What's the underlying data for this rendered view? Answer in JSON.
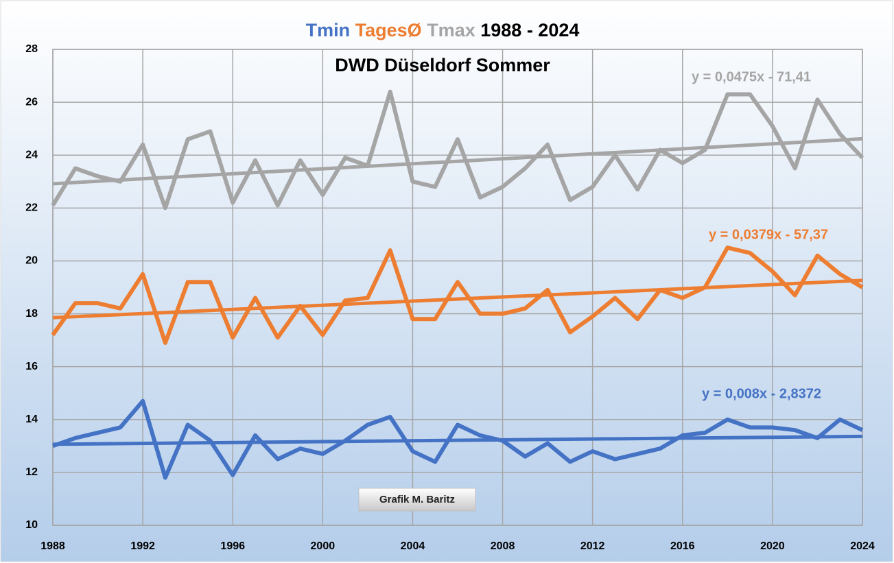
{
  "chart_data": {
    "type": "line",
    "title": "1988 - 2024",
    "subtitle": "DWD Düseldorf Sommer",
    "annotation": "Grafik M. Baritz",
    "x": [
      1988,
      1989,
      1990,
      1991,
      1992,
      1993,
      1994,
      1995,
      1996,
      1997,
      1998,
      1999,
      2000,
      2001,
      2002,
      2003,
      2004,
      2005,
      2006,
      2007,
      2008,
      2009,
      2010,
      2011,
      2012,
      2013,
      2014,
      2015,
      2016,
      2017,
      2018,
      2019,
      2020,
      2021,
      2022,
      2023,
      2024
    ],
    "series": [
      {
        "name": "Tmin",
        "color": "#4472c4",
        "trend_label": "y = 0,008x - 2,8372",
        "values": [
          13.0,
          13.3,
          13.5,
          13.7,
          14.7,
          11.8,
          13.8,
          13.2,
          11.9,
          13.4,
          12.5,
          12.9,
          12.7,
          13.2,
          13.8,
          14.1,
          12.8,
          12.4,
          13.8,
          13.4,
          13.2,
          12.6,
          13.1,
          12.4,
          12.8,
          12.5,
          12.7,
          12.9,
          13.4,
          13.5,
          14.0,
          13.7,
          13.7,
          13.6,
          13.3,
          14.0,
          13.6
        ]
      },
      {
        "name": "TagesØ",
        "color": "#ed7d31",
        "trend_label": "y = 0,0379x - 57,37",
        "values": [
          17.2,
          18.4,
          18.4,
          18.2,
          19.5,
          16.9,
          19.2,
          19.2,
          17.1,
          18.6,
          17.1,
          18.3,
          17.2,
          18.5,
          18.6,
          20.4,
          17.8,
          17.8,
          19.2,
          18.0,
          18.0,
          18.2,
          18.9,
          17.3,
          17.9,
          18.6,
          17.8,
          18.9,
          18.6,
          19.0,
          20.5,
          20.3,
          19.6,
          18.7,
          20.2,
          19.5,
          19.0
        ]
      },
      {
        "name": "Tmax",
        "color": "#a5a5a5",
        "trend_label": "y = 0,0475x - 71,41",
        "values": [
          22.1,
          23.5,
          23.2,
          23.0,
          24.4,
          22.0,
          24.6,
          24.9,
          22.2,
          23.8,
          22.1,
          23.8,
          22.5,
          23.9,
          23.6,
          26.4,
          23.0,
          22.8,
          24.6,
          22.4,
          22.8,
          23.5,
          24.4,
          22.3,
          22.8,
          24.0,
          22.7,
          24.2,
          23.7,
          24.2,
          26.3,
          26.3,
          25.1,
          23.5,
          26.1,
          24.8,
          23.9
        ]
      }
    ],
    "title_color": "#000000",
    "xlim": [
      1988,
      2024
    ],
    "xticks": [
      1988,
      1992,
      1996,
      2000,
      2004,
      2008,
      2012,
      2016,
      2020,
      2024
    ],
    "ylim": [
      10,
      28
    ],
    "yticks": [
      10,
      12,
      14,
      16,
      18,
      20,
      22,
      24,
      26,
      28
    ],
    "grid": true
  }
}
